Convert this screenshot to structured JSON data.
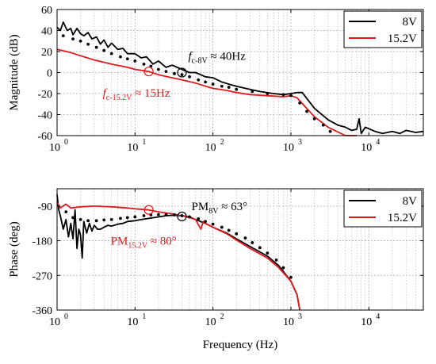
{
  "figure": {
    "colors": {
      "black": "#000000",
      "red": "#e0191c",
      "grid": "#b0b0b0"
    }
  },
  "chart_data": [
    {
      "type": "line",
      "xlabel": "",
      "ylabel": "Magnitude (dB)",
      "xscale": "log",
      "xlim": [
        1,
        50000
      ],
      "ylim": [
        -60,
        60
      ],
      "grid": true,
      "legend_position": "top-right",
      "x_ticks": [
        "10",
        "10",
        "10",
        "10",
        "10"
      ],
      "x_tick_exponents": [
        "0",
        "1",
        "2",
        "3",
        "4"
      ],
      "y_ticks": [
        "60",
        "40",
        "20",
        "0",
        "-20",
        "-40",
        "-60"
      ],
      "series": [
        {
          "name": "8V",
          "color": "#000000",
          "x": [
            1,
            1.1,
            1.2,
            1.35,
            1.5,
            1.6,
            1.8,
            2,
            2.2,
            2.5,
            2.8,
            3.2,
            3.6,
            4,
            4.5,
            5,
            6,
            7,
            8,
            10,
            12,
            14,
            17,
            20,
            25,
            30,
            40,
            50,
            60,
            80,
            100,
            130,
            160,
            200,
            300,
            400,
            600,
            800,
            1000,
            1200,
            1400,
            2000,
            3000,
            4000,
            5000,
            6000,
            7000,
            7500,
            8000,
            9000,
            12000,
            15000,
            20000,
            25000,
            30000,
            40000,
            50000
          ],
          "y": [
            43,
            40,
            48,
            40,
            42,
            36,
            42,
            37,
            35,
            38,
            32,
            34,
            27,
            31,
            24,
            28,
            22,
            23,
            18,
            18,
            14,
            15,
            8,
            11,
            5,
            7,
            3,
            0,
            0,
            -4,
            -5,
            -9,
            -11,
            -13,
            -16,
            -18,
            -20,
            -21,
            -20,
            -19,
            -19,
            -34,
            -45,
            -50,
            -52,
            -55,
            -54,
            -44,
            -58,
            -52,
            -56,
            -58,
            -56,
            -58,
            -55,
            -57,
            -56
          ]
        },
        {
          "name": "15.2V",
          "color": "#e0191c",
          "x": [
            1,
            1.5,
            2,
            3,
            5,
            8,
            10,
            15,
            20,
            30,
            40,
            60,
            80,
            100,
            150,
            200,
            300,
            500,
            800,
            1000,
            1200,
            1500,
            2000,
            3000,
            5000,
            7000
          ],
          "y": [
            22,
            19,
            16,
            12,
            8,
            5,
            3,
            1,
            -2,
            -5,
            -7,
            -10,
            -13,
            -15,
            -17,
            -19,
            -21,
            -22,
            -23,
            -22,
            -24,
            -32,
            -42,
            -52,
            -60,
            -62
          ]
        },
        {
          "name": "",
          "role": "markers",
          "color": "#000000",
          "x": [
            1.2,
            1.6,
            2,
            2.5,
            3.2,
            4,
            5,
            6.5,
            8,
            10,
            13,
            16,
            20,
            25,
            32,
            40,
            50,
            65,
            80,
            100,
            130,
            160,
            200,
            320,
            500,
            800,
            1000,
            1300,
            1600,
            2000,
            2600,
            3200
          ],
          "y": [
            35,
            32,
            30,
            27,
            24,
            21,
            18,
            15,
            13,
            11,
            8,
            6,
            3,
            1,
            -1,
            -2,
            -4,
            -7,
            -9,
            -11,
            -13,
            -14,
            -16,
            -18,
            -20,
            -21,
            -22,
            -29,
            -37,
            -44,
            -50,
            -56
          ]
        }
      ],
      "annotations": [
        {
          "prefix": "f",
          "sub": "c-8V",
          "text": " ≈ 40Hz",
          "color": "#000000",
          "x": 40,
          "y": 0
        },
        {
          "prefix": "f",
          "sub": "c-15.2V",
          "text": " ≈ 15Hz",
          "color": "#e0191c",
          "x": 15,
          "y": 1
        }
      ]
    },
    {
      "type": "line",
      "xlabel": "Frequency (Hz)",
      "ylabel": "Phase (deg)",
      "xscale": "log",
      "xlim": [
        1,
        50000
      ],
      "ylim": [
        -360,
        -45
      ],
      "grid": true,
      "legend_position": "top-right",
      "x_ticks": [
        "10",
        "10",
        "10",
        "10",
        "10"
      ],
      "x_tick_exponents": [
        "0",
        "1",
        "2",
        "3",
        "4"
      ],
      "y_ticks": [
        "-90",
        "-180",
        "-270",
        "-360"
      ],
      "series": [
        {
          "name": "8V",
          "color": "#000000",
          "x": [
            1,
            1.05,
            1.1,
            1.2,
            1.3,
            1.4,
            1.5,
            1.6,
            1.7,
            1.8,
            1.9,
            2,
            2.1,
            2.2,
            2.4,
            2.6,
            2.8,
            3,
            3.3,
            3.6,
            4,
            4.5,
            5,
            6,
            7,
            8,
            10,
            12,
            15,
            20,
            25,
            30,
            40,
            50,
            60,
            80,
            100,
            150,
            200,
            300,
            500,
            700,
            1000,
            1200,
            1300
          ],
          "y": [
            -60,
            -100,
            -115,
            -150,
            -125,
            -170,
            -135,
            -175,
            -100,
            -200,
            -150,
            -165,
            -225,
            -130,
            -160,
            -135,
            -155,
            -140,
            -150,
            -150,
            -145,
            -140,
            -142,
            -137,
            -135,
            -130,
            -128,
            -125,
            -122,
            -118,
            -115,
            -114,
            -115,
            -118,
            -125,
            -135,
            -145,
            -160,
            -175,
            -195,
            -220,
            -245,
            -285,
            -320,
            -360
          ]
        },
        {
          "name": "15.2V",
          "color": "#e0191c",
          "x": [
            1,
            1.1,
            1.3,
            1.5,
            2,
            3,
            5,
            8,
            10,
            15,
            20,
            30,
            40,
            50,
            60,
            70,
            75,
            80,
            100,
            150,
            200,
            300,
            500,
            700,
            1000,
            1200,
            1300
          ],
          "y": [
            -80,
            -95,
            -85,
            -95,
            -92,
            -90,
            -92,
            -95,
            -97,
            -100,
            -105,
            -110,
            -115,
            -120,
            -125,
            -150,
            -130,
            -135,
            -145,
            -162,
            -178,
            -200,
            -225,
            -250,
            -285,
            -320,
            -360
          ]
        },
        {
          "name": "",
          "role": "markers",
          "color": "#000000",
          "x": [
            1.3,
            1.6,
            2,
            2.5,
            3.2,
            4,
            5,
            6.5,
            8,
            10,
            13,
            16,
            20,
            25,
            32,
            40,
            50,
            65,
            80,
            100,
            130,
            160,
            200,
            260,
            320,
            400,
            500,
            650,
            800,
            1000
          ],
          "y": [
            -105,
            -120,
            -125,
            -128,
            -128,
            -126,
            -125,
            -122,
            -120,
            -118,
            -115,
            -113,
            -112,
            -112,
            -113,
            -115,
            -118,
            -123,
            -130,
            -137,
            -145,
            -153,
            -162,
            -173,
            -185,
            -198,
            -212,
            -230,
            -250,
            -275
          ]
        }
      ],
      "annotations": [
        {
          "prefix": "PM",
          "sub": "8V",
          "text": " ≈ 63°",
          "color": "#000000",
          "x": 40,
          "y": -117
        },
        {
          "prefix": "PM",
          "sub": "15.2V",
          "text": " ≈ 80°",
          "color": "#e0191c",
          "x": 15,
          "y": -100
        }
      ]
    }
  ]
}
